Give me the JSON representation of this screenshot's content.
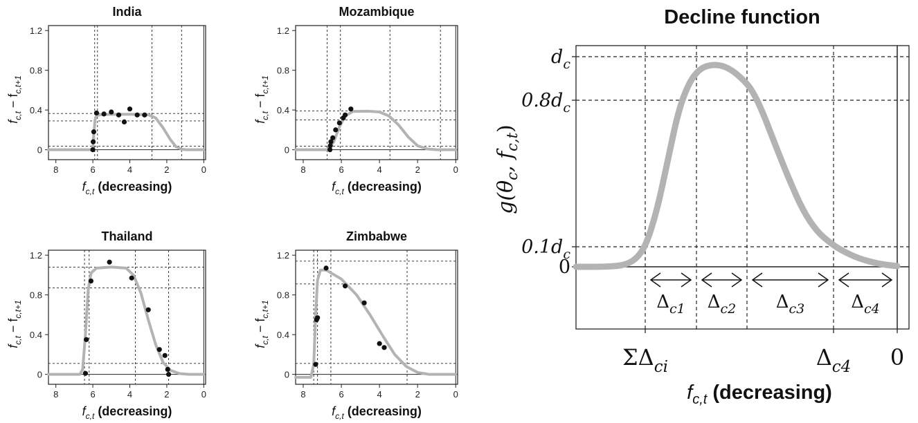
{
  "figure": {
    "big_title": "Decline function",
    "big_xlabel_var": "f",
    "big_xlabel_sub": "c,t",
    "big_xlabel_text": "(decreasing)",
    "big_ylabel_g": "g(θ",
    "big_ylabel_c": "c",
    "big_ylabel_mid": ", f",
    "big_ylabel_ct": "c,t",
    "big_ylabel_end": ")",
    "big_yticks": [
      {
        "v": "d",
        "s": "c"
      },
      {
        "v": "0.8d",
        "s": "c"
      },
      {
        "v": "0.1d",
        "s": "c"
      },
      {
        "v": "0",
        "s": ""
      }
    ],
    "big_xticks": [
      {
        "v": "ΣΔ",
        "s": "ci"
      },
      {
        "v": "Δ",
        "s": "c4"
      },
      {
        "v": "0",
        "s": ""
      }
    ],
    "big_arrows": [
      {
        "v": "Δ",
        "s": "c1"
      },
      {
        "v": "Δ",
        "s": "c2"
      },
      {
        "v": "Δ",
        "s": "c3"
      },
      {
        "v": "Δ",
        "s": "c4"
      }
    ],
    "small_xlabel_var": "f",
    "small_xlabel_sub": "c,t",
    "small_xlabel_text": "(decreasing)",
    "small_ylabel_a": "f",
    "small_ylabel_a_sub": "c,t",
    "small_ylabel_op": " − f",
    "small_ylabel_b_sub": "c,t+1",
    "colors": {
      "curve": "#b3b3b3",
      "point": "#111111",
      "axis": "#222222",
      "grid": "#222222"
    }
  },
  "chart_data": [
    {
      "type": "scatter",
      "title": "India",
      "x_reversed": true,
      "xlim": [
        8.4,
        -0.1
      ],
      "ylim": [
        -0.1,
        1.25
      ],
      "xticks": [
        "8",
        "6",
        "4",
        "2",
        "0"
      ],
      "yticks": [
        "0",
        "0.4",
        "0.8",
        "1.2"
      ],
      "vlines": [
        5.9,
        5.75,
        2.8,
        1.2
      ],
      "hlines": [
        0.365,
        0.29,
        0.035
      ],
      "points": [
        [
          6.0,
          0.0
        ],
        [
          5.98,
          0.08
        ],
        [
          5.95,
          0.18
        ],
        [
          5.8,
          0.37
        ],
        [
          5.4,
          0.36
        ],
        [
          5.0,
          0.38
        ],
        [
          4.6,
          0.35
        ],
        [
          4.3,
          0.28
        ],
        [
          4.0,
          0.41
        ],
        [
          3.6,
          0.35
        ],
        [
          3.2,
          0.35
        ]
      ],
      "curve": [
        [
          8.4,
          0.0
        ],
        [
          6.1,
          0.0
        ],
        [
          6.0,
          0.02
        ],
        [
          5.95,
          0.15
        ],
        [
          5.88,
          0.3
        ],
        [
          5.8,
          0.345
        ],
        [
          5.5,
          0.355
        ],
        [
          4.0,
          0.357
        ],
        [
          3.0,
          0.352
        ],
        [
          2.6,
          0.32
        ],
        [
          2.2,
          0.22
        ],
        [
          1.8,
          0.1
        ],
        [
          1.5,
          0.03
        ],
        [
          1.2,
          0.005
        ],
        [
          1.0,
          0.0
        ],
        [
          0.0,
          0.0
        ]
      ]
    },
    {
      "type": "scatter",
      "title": "Mozambique",
      "x_reversed": true,
      "xlim": [
        8.4,
        -0.1
      ],
      "ylim": [
        -0.1,
        1.25
      ],
      "xticks": [
        "8",
        "6",
        "4",
        "2",
        "0"
      ],
      "yticks": [
        "0",
        "0.4",
        "0.8",
        "1.2"
      ],
      "vlines": [
        6.75,
        6.05,
        3.45,
        0.8
      ],
      "hlines": [
        0.39,
        0.3,
        0.035
      ],
      "points": [
        [
          6.6,
          0.0
        ],
        [
          6.58,
          0.04
        ],
        [
          6.55,
          0.08
        ],
        [
          6.45,
          0.12
        ],
        [
          6.3,
          0.2
        ],
        [
          6.1,
          0.27
        ],
        [
          5.9,
          0.32
        ],
        [
          5.8,
          0.35
        ],
        [
          5.5,
          0.41
        ]
      ],
      "curve": [
        [
          8.4,
          0.0
        ],
        [
          6.7,
          0.0
        ],
        [
          6.4,
          0.08
        ],
        [
          6.1,
          0.23
        ],
        [
          5.8,
          0.34
        ],
        [
          5.4,
          0.385
        ],
        [
          4.6,
          0.388
        ],
        [
          4.0,
          0.38
        ],
        [
          3.5,
          0.34
        ],
        [
          3.0,
          0.25
        ],
        [
          2.5,
          0.13
        ],
        [
          2.0,
          0.04
        ],
        [
          1.5,
          0.008
        ],
        [
          1.0,
          0.0
        ],
        [
          0.0,
          0.0
        ]
      ]
    },
    {
      "type": "scatter",
      "title": "Thailand",
      "x_reversed": true,
      "xlim": [
        8.4,
        -0.1
      ],
      "ylim": [
        -0.1,
        1.25
      ],
      "xticks": [
        "8",
        "6",
        "4",
        "2",
        "0"
      ],
      "yticks": [
        "0",
        "0.4",
        "0.8",
        "1.2"
      ],
      "vlines": [
        6.45,
        6.2,
        3.7,
        1.9
      ],
      "hlines": [
        1.08,
        0.87,
        0.11
      ],
      "points": [
        [
          6.4,
          0.01
        ],
        [
          6.35,
          0.35
        ],
        [
          6.1,
          0.94
        ],
        [
          5.1,
          1.13
        ],
        [
          3.9,
          0.97
        ],
        [
          3.0,
          0.65
        ],
        [
          2.4,
          0.25
        ],
        [
          2.1,
          0.19
        ],
        [
          1.95,
          0.05
        ],
        [
          1.9,
          0.0
        ]
      ],
      "curve": [
        [
          8.4,
          0.0
        ],
        [
          6.7,
          0.0
        ],
        [
          6.55,
          0.05
        ],
        [
          6.4,
          0.4
        ],
        [
          6.25,
          0.85
        ],
        [
          6.1,
          1.02
        ],
        [
          5.8,
          1.07
        ],
        [
          5.0,
          1.08
        ],
        [
          4.2,
          1.07
        ],
        [
          3.8,
          1.0
        ],
        [
          3.4,
          0.82
        ],
        [
          3.0,
          0.55
        ],
        [
          2.6,
          0.3
        ],
        [
          2.2,
          0.12
        ],
        [
          1.8,
          0.04
        ],
        [
          1.3,
          0.008
        ],
        [
          0.8,
          0.0
        ],
        [
          0.0,
          0.0
        ]
      ]
    },
    {
      "type": "scatter",
      "title": "Zimbabwe",
      "x_reversed": true,
      "xlim": [
        8.4,
        -0.1
      ],
      "ylim": [
        -0.1,
        1.25
      ],
      "xticks": [
        "8",
        "6",
        "4",
        "2",
        "0"
      ],
      "yticks": [
        "0",
        "0.4",
        "0.8",
        "1.2"
      ],
      "vlines": [
        7.45,
        7.25,
        6.55,
        2.55
      ],
      "hlines": [
        1.14,
        0.91,
        0.11
      ],
      "points": [
        [
          7.35,
          0.1
        ],
        [
          7.3,
          0.55
        ],
        [
          7.25,
          0.57
        ],
        [
          6.8,
          1.07
        ],
        [
          5.8,
          0.89
        ],
        [
          4.8,
          0.72
        ],
        [
          4.0,
          0.31
        ],
        [
          3.75,
          0.27
        ]
      ],
      "curve": [
        [
          8.4,
          -0.03
        ],
        [
          7.6,
          -0.03
        ],
        [
          7.45,
          0.1
        ],
        [
          7.35,
          0.6
        ],
        [
          7.25,
          0.95
        ],
        [
          7.1,
          1.05
        ],
        [
          6.8,
          1.05
        ],
        [
          6.0,
          0.96
        ],
        [
          5.2,
          0.8
        ],
        [
          4.5,
          0.6
        ],
        [
          3.8,
          0.38
        ],
        [
          3.2,
          0.2
        ],
        [
          2.6,
          0.08
        ],
        [
          2.0,
          0.02
        ],
        [
          1.4,
          0.0
        ],
        [
          0.0,
          0.0
        ]
      ]
    }
  ]
}
